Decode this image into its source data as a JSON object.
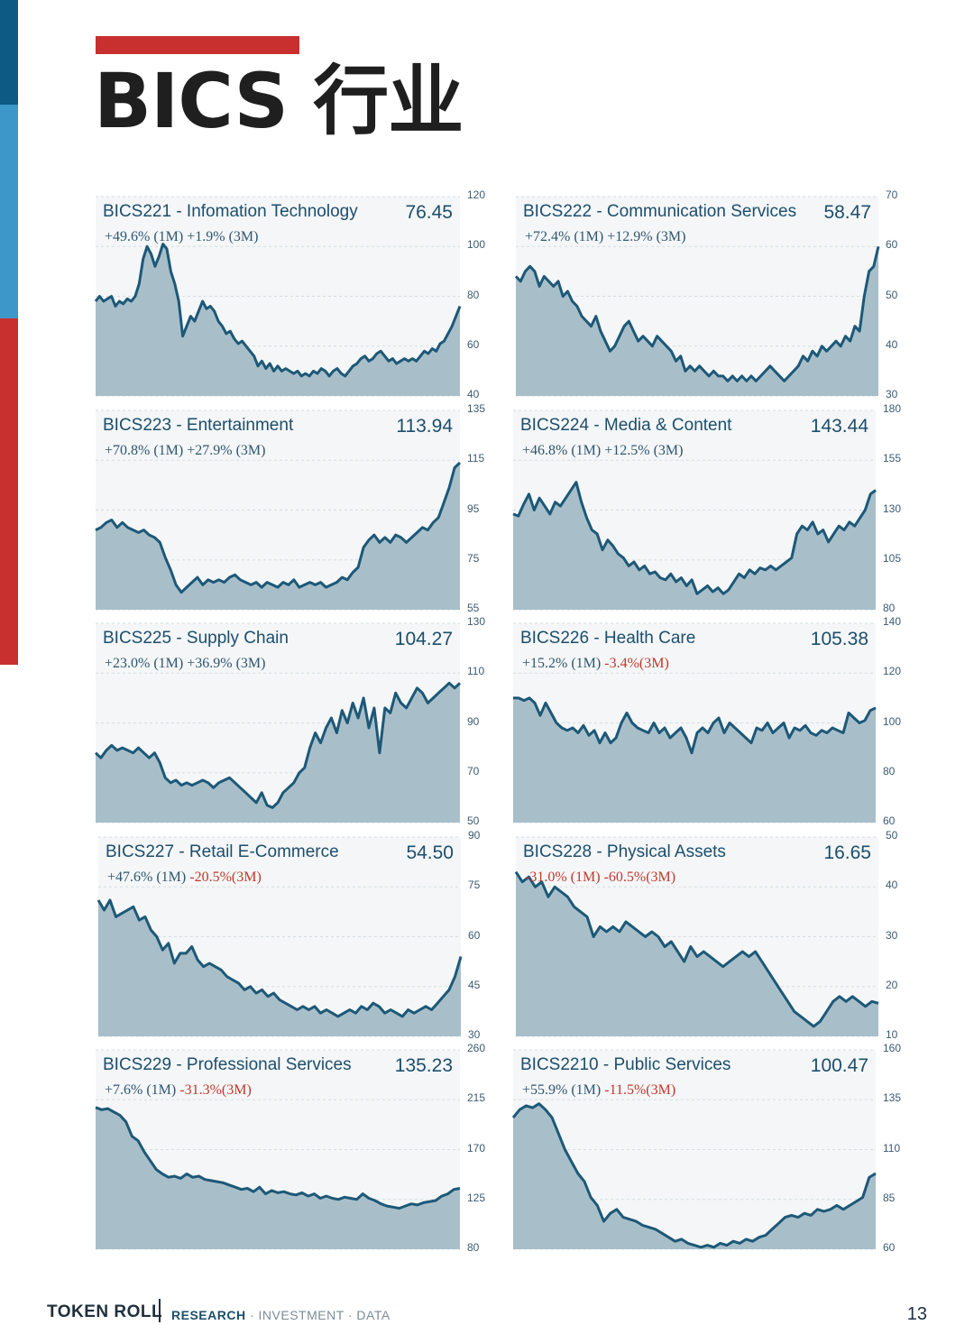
{
  "page": {
    "title": "BICS 行业",
    "footer_brand": "TOKEN ROLL",
    "footer_tag_1": "RESEARCH",
    "footer_tag_2": " · INVESTMENT · DATA",
    "page_number": "13"
  },
  "colors": {
    "sidebar": [
      "#0d5a85",
      "#3d97c9",
      "#c7302e"
    ],
    "accent_red": "#c7302e",
    "line": "#1d5877",
    "area_fill": "#a8bfca",
    "panel_bg": "#f4f6f7",
    "negative": "#c0392b"
  },
  "charts": [
    {
      "name": "BICS221 - Infomation Technology",
      "value": "76.45",
      "perf_1m": "+49.6% (1M)",
      "perf_1m_negative": false,
      "perf_3m": "+1.9% (3M)",
      "perf_3m_negative": false,
      "y_ticks": [
        "120",
        "100",
        "80",
        "60",
        "40"
      ],
      "chart_data": {
        "type": "area",
        "ylim": [
          40,
          120
        ],
        "values": [
          78,
          80,
          78,
          79,
          80,
          76,
          78,
          77,
          79,
          78,
          80,
          85,
          95,
          100,
          97,
          92,
          96,
          101,
          99,
          90,
          85,
          78,
          64,
          68,
          72,
          70,
          74,
          78,
          75,
          76,
          74,
          70,
          68,
          65,
          66,
          63,
          61,
          62,
          60,
          58,
          56,
          52,
          54,
          51,
          53,
          50,
          52,
          50,
          51,
          50,
          49,
          50,
          48,
          49,
          48,
          50,
          49,
          51,
          50,
          48,
          50,
          51,
          49,
          48,
          50,
          52,
          53,
          55,
          56,
          54,
          55,
          57,
          58,
          56,
          54,
          55,
          53,
          54,
          55,
          54,
          55,
          54,
          56,
          58,
          57,
          59,
          58,
          61,
          62,
          65,
          68,
          72,
          76
        ]
      }
    },
    {
      "name": "BICS222 - Communication Services",
      "value": "58.47",
      "perf_1m": "+72.4% (1M)",
      "perf_1m_negative": false,
      "perf_3m": "+12.9% (3M)",
      "perf_3m_negative": false,
      "y_ticks": [
        "70",
        "60",
        "50",
        "40",
        "30"
      ],
      "chart_data": {
        "type": "area",
        "ylim": [
          30,
          70
        ],
        "values": [
          54,
          53,
          55,
          56,
          55,
          52,
          54,
          53,
          52,
          53,
          50,
          51,
          49,
          48,
          46,
          45,
          44,
          46,
          43,
          41,
          39,
          40,
          42,
          44,
          45,
          43,
          41,
          42,
          41,
          40,
          42,
          41,
          40,
          39,
          37,
          38,
          35,
          36,
          35,
          36,
          35,
          34,
          35,
          34,
          34,
          33,
          34,
          33,
          34,
          33,
          34,
          33,
          34,
          35,
          36,
          35,
          34,
          33,
          34,
          35,
          36,
          38,
          37,
          39,
          38,
          40,
          39,
          40,
          41,
          40,
          42,
          41,
          44,
          43,
          50,
          55,
          56,
          60
        ]
      }
    },
    {
      "name": "BICS223 - Entertainment",
      "value": "113.94",
      "perf_1m": "+70.8% (1M)",
      "perf_1m_negative": false,
      "perf_3m": "+27.9% (3M)",
      "perf_3m_negative": false,
      "y_ticks": [
        "135",
        "115",
        "95",
        "75",
        "55"
      ],
      "chart_data": {
        "type": "area",
        "ylim": [
          55,
          135
        ],
        "values": [
          87,
          88,
          90,
          91,
          88,
          90,
          88,
          87,
          86,
          87,
          85,
          84,
          82,
          76,
          71,
          65,
          62,
          64,
          66,
          68,
          65,
          67,
          66,
          67,
          66,
          68,
          69,
          67,
          66,
          65,
          66,
          64,
          66,
          65,
          64,
          66,
          65,
          67,
          64,
          65,
          66,
          65,
          66,
          64,
          65,
          66,
          68,
          67,
          70,
          72,
          80,
          83,
          85,
          82,
          84,
          82,
          85,
          84,
          82,
          84,
          86,
          88,
          87,
          90,
          92,
          98,
          104,
          112,
          114
        ]
      }
    },
    {
      "name": "BICS224 - Media & Content",
      "value": "143.44",
      "perf_1m": "+46.8% (1M)",
      "perf_1m_negative": false,
      "perf_3m": "+12.5% (3M)",
      "perf_3m_negative": false,
      "y_ticks": [
        "180",
        "155",
        "130",
        "105",
        "80"
      ],
      "chart_data": {
        "type": "area",
        "ylim": [
          80,
          180
        ],
        "values": [
          128,
          127,
          133,
          138,
          130,
          136,
          132,
          128,
          134,
          132,
          136,
          140,
          144,
          134,
          126,
          120,
          118,
          110,
          115,
          112,
          108,
          106,
          102,
          104,
          100,
          102,
          98,
          99,
          96,
          95,
          98,
          94,
          96,
          92,
          95,
          88,
          90,
          92,
          89,
          91,
          88,
          90,
          94,
          98,
          96,
          100,
          98,
          101,
          100,
          102,
          100,
          102,
          104,
          106,
          118,
          122,
          120,
          124,
          118,
          120,
          114,
          118,
          122,
          120,
          124,
          122,
          126,
          130,
          138,
          140
        ]
      }
    },
    {
      "name": "BICS225 - Supply Chain",
      "value": "104.27",
      "perf_1m": "+23.0% (1M)",
      "perf_1m_negative": false,
      "perf_3m": "+36.9% (3M)",
      "perf_3m_negative": false,
      "y_ticks": [
        "130",
        "110",
        "90",
        "70",
        "50"
      ],
      "chart_data": {
        "type": "area",
        "ylim": [
          50,
          130
        ],
        "values": [
          78,
          76,
          79,
          81,
          79,
          80,
          79,
          78,
          80,
          78,
          76,
          78,
          74,
          68,
          66,
          67,
          65,
          66,
          65,
          66,
          67,
          66,
          64,
          66,
          67,
          68,
          66,
          64,
          62,
          60,
          58,
          62,
          57,
          56,
          58,
          62,
          64,
          66,
          70,
          72,
          80,
          86,
          82,
          88,
          92,
          86,
          95,
          90,
          98,
          92,
          100,
          88,
          96,
          78,
          96,
          94,
          102,
          98,
          96,
          100,
          104,
          102,
          98,
          100,
          102,
          104,
          106,
          104,
          106
        ]
      }
    },
    {
      "name": "BICS226 - Health Care",
      "value": "105.38",
      "perf_1m": "+15.2% (1M)",
      "perf_1m_negative": false,
      "perf_3m": "-3.4%(3M)",
      "perf_3m_negative": true,
      "y_ticks": [
        "140",
        "120",
        "100",
        "80",
        "60"
      ],
      "chart_data": {
        "type": "area",
        "ylim": [
          60,
          140
        ],
        "values": [
          110,
          110,
          109,
          110,
          108,
          103,
          108,
          104,
          100,
          98,
          97,
          98,
          96,
          99,
          95,
          97,
          92,
          96,
          92,
          94,
          100,
          104,
          100,
          98,
          97,
          96,
          100,
          96,
          98,
          94,
          96,
          98,
          94,
          88,
          96,
          98,
          96,
          100,
          102,
          96,
          100,
          98,
          96,
          94,
          92,
          98,
          97,
          100,
          96,
          98,
          100,
          94,
          98,
          97,
          99,
          96,
          95,
          97,
          96,
          98,
          97,
          96,
          104,
          102,
          100,
          101,
          105,
          106
        ]
      }
    },
    {
      "name": "BICS227 - Retail E-Commerce",
      "value": "54.50",
      "perf_1m": "+47.6% (1M)",
      "perf_1m_negative": false,
      "perf_3m": "-20.5%(3M)",
      "perf_3m_negative": true,
      "y_ticks": [
        "90",
        "75",
        "60",
        "45",
        "30"
      ],
      "chart_data": {
        "type": "area",
        "ylim": [
          30,
          90
        ],
        "values": [
          71,
          68,
          71,
          66,
          67,
          68,
          69,
          65,
          66,
          62,
          60,
          56,
          58,
          52,
          55,
          55,
          57,
          53,
          51,
          52,
          51,
          50,
          48,
          47,
          46,
          44,
          45,
          43,
          44,
          42,
          43,
          41,
          40,
          39,
          38,
          39,
          38,
          39,
          37,
          38,
          37,
          36,
          37,
          38,
          37,
          39,
          38,
          40,
          39,
          37,
          38,
          37,
          36,
          38,
          37,
          38,
          39,
          38,
          40,
          42,
          44,
          48,
          54
        ]
      }
    },
    {
      "name": "BICS228 - Physical Assets",
      "value": "16.65",
      "perf_1m": "-31.0% (1M)",
      "perf_1m_negative": true,
      "perf_3m": "-60.5%(3M)",
      "perf_3m_negative": true,
      "y_ticks": [
        "50",
        "40",
        "30",
        "20",
        "10"
      ],
      "chart_data": {
        "type": "area",
        "ylim": [
          10,
          50
        ],
        "values": [
          43,
          41,
          42,
          40,
          41,
          38,
          40,
          39,
          38,
          36,
          35,
          34,
          30,
          32,
          31,
          32,
          31,
          33,
          32,
          31,
          30,
          31,
          30,
          28,
          29,
          27,
          25,
          28,
          26,
          27,
          26,
          25,
          24,
          25,
          26,
          27,
          26,
          27,
          25,
          23,
          21,
          19,
          17,
          15,
          14,
          13,
          12,
          13,
          15,
          17,
          18,
          17,
          18,
          17,
          16,
          17,
          16.65
        ]
      }
    },
    {
      "name": "BICS229 - Professional Services",
      "value": "135.23",
      "perf_1m": "+7.6% (1M)",
      "perf_1m_negative": false,
      "perf_3m": "-31.3%(3M)",
      "perf_3m_negative": true,
      "y_ticks": [
        "260",
        "215",
        "170",
        "125",
        "80"
      ],
      "chart_data": {
        "type": "area",
        "ylim": [
          80,
          260
        ],
        "values": [
          208,
          206,
          207,
          204,
          201,
          195,
          182,
          178,
          168,
          160,
          152,
          148,
          145,
          146,
          144,
          148,
          145,
          146,
          143,
          142,
          141,
          140,
          138,
          136,
          134,
          135,
          132,
          136,
          130,
          133,
          131,
          132,
          130,
          129,
          131,
          128,
          130,
          126,
          128,
          126,
          125,
          127,
          126,
          125,
          130,
          126,
          124,
          121,
          119,
          118,
          117,
          119,
          121,
          120,
          122,
          123,
          124,
          128,
          130,
          134,
          135
        ]
      }
    },
    {
      "name": "BICS2210 - Public Services",
      "value": "100.47",
      "perf_1m": "+55.9% (1M)",
      "perf_1m_negative": false,
      "perf_3m": "-11.5%(3M)",
      "perf_3m_negative": true,
      "y_ticks": [
        "160",
        "135",
        "110",
        "85",
        "60"
      ],
      "chart_data": {
        "type": "area",
        "ylim": [
          60,
          160
        ],
        "values": [
          126,
          130,
          132,
          131,
          133,
          130,
          126,
          118,
          110,
          104,
          98,
          94,
          86,
          82,
          74,
          78,
          80,
          76,
          75,
          74,
          72,
          71,
          70,
          68,
          66,
          64,
          65,
          63,
          62,
          61,
          62,
          61,
          63,
          62,
          64,
          63,
          65,
          64,
          66,
          67,
          70,
          73,
          76,
          77,
          76,
          78,
          77,
          80,
          79,
          80,
          82,
          80,
          82,
          84,
          86,
          96,
          98
        ]
      }
    }
  ]
}
